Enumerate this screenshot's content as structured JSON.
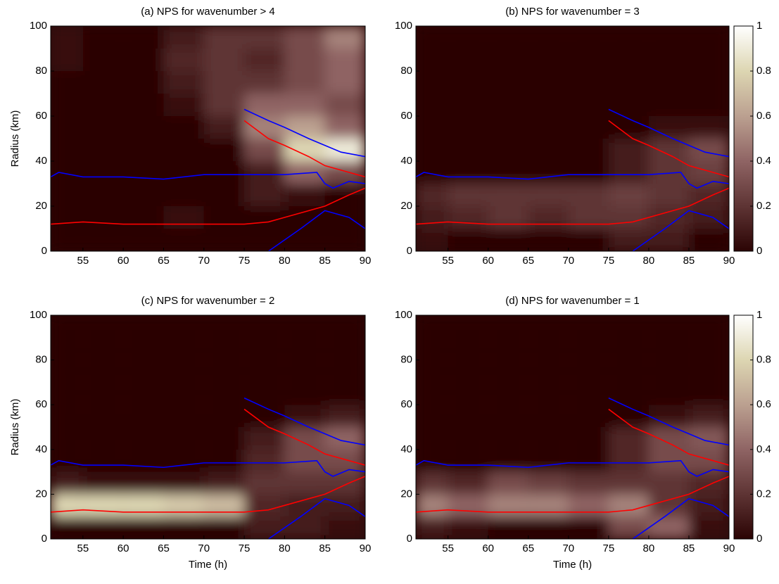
{
  "chart_data": [
    {
      "type": "heatmap",
      "title": "(a) NPS for wavenumber > 4",
      "ylabel": "Radius (km)",
      "xlim": [
        51,
        90
      ],
      "ylim": [
        0,
        100
      ],
      "xticks": [
        55,
        60,
        65,
        70,
        75,
        80,
        85,
        90
      ],
      "yticks": [
        0,
        20,
        40,
        60,
        80,
        100
      ],
      "xbins": [
        51,
        55,
        60,
        65,
        70,
        75,
        80,
        85,
        90
      ],
      "ybins": [
        0,
        10,
        20,
        30,
        40,
        50,
        60,
        70,
        80,
        90,
        100
      ],
      "clim": [
        0,
        1
      ],
      "colormap": [
        "#2b0404",
        "#5e3434",
        "#8f6464",
        "#bba090",
        "#ddd6b2",
        "#ffffff"
      ],
      "colorbar": false,
      "z": [
        [
          0,
          0,
          0,
          0,
          0,
          0,
          0,
          0
        ],
        [
          0,
          0,
          0,
          0.05,
          0,
          0,
          0,
          0
        ],
        [
          0,
          0,
          0,
          0,
          0,
          0.1,
          0.05,
          0
        ],
        [
          0,
          0,
          0,
          0,
          0,
          0.1,
          0.4,
          0.3
        ],
        [
          0,
          0,
          0,
          0,
          0,
          0.3,
          0.8,
          0.9
        ],
        [
          0,
          0,
          0,
          0,
          0.1,
          0.5,
          0.6,
          0.4
        ],
        [
          0,
          0,
          0,
          0.05,
          0.2,
          0.4,
          0.4,
          0.3
        ],
        [
          0,
          0,
          0,
          0.1,
          0.2,
          0.2,
          0.3,
          0.4
        ],
        [
          0.05,
          0,
          0,
          0.15,
          0.2,
          0.15,
          0.3,
          0.4
        ],
        [
          0.05,
          0,
          0,
          0.1,
          0.2,
          0.2,
          0.3,
          0.5
        ]
      ],
      "lines": [
        {
          "color": "#0000ff",
          "x": [
            51,
            52,
            55,
            60,
            65,
            70,
            75,
            80,
            84,
            85,
            86,
            88,
            90
          ],
          "y": [
            33,
            35,
            33,
            33,
            32,
            34,
            34,
            34,
            35,
            30,
            28,
            31,
            30
          ]
        },
        {
          "color": "#ff0000",
          "x": [
            51,
            55,
            60,
            70,
            75,
            78,
            80,
            85,
            88,
            90
          ],
          "y": [
            12,
            13,
            12,
            12,
            12,
            13,
            15,
            20,
            25,
            28
          ]
        },
        {
          "color": "#ff0000",
          "x": [
            75,
            78,
            80,
            83,
            85,
            88,
            90
          ],
          "y": [
            58,
            50,
            47,
            42,
            38,
            35,
            33
          ]
        },
        {
          "color": "#0000ff",
          "x": [
            75,
            78,
            80,
            83,
            85,
            87,
            90
          ],
          "y": [
            63,
            58,
            55,
            50,
            47,
            44,
            42
          ]
        },
        {
          "color": "#0000ff",
          "x": [
            78,
            82,
            85,
            88,
            90
          ],
          "y": [
            0,
            10,
            18,
            15,
            10
          ]
        }
      ]
    },
    {
      "type": "heatmap",
      "title": "(b) NPS for wavenumber = 3",
      "xlim": [
        51,
        90
      ],
      "ylim": [
        0,
        100
      ],
      "xticks": [
        55,
        60,
        65,
        70,
        75,
        80,
        85,
        90
      ],
      "yticks": [
        0,
        20,
        40,
        60,
        80,
        100
      ],
      "xbins": [
        51,
        55,
        60,
        65,
        70,
        75,
        80,
        85,
        90
      ],
      "ybins": [
        0,
        10,
        20,
        30,
        40,
        50,
        60,
        70,
        80,
        90,
        100
      ],
      "clim": [
        0,
        1
      ],
      "colormap": [
        "#2b0404",
        "#5e3434",
        "#8f6464",
        "#bba090",
        "#ddd6b2",
        "#ffffff"
      ],
      "colorbar": true,
      "cticks": [
        0,
        0.2,
        0.4,
        0.6,
        0.8,
        1
      ],
      "z": [
        [
          0.05,
          0,
          0,
          0,
          0,
          0.1,
          0.1,
          0
        ],
        [
          0.1,
          0.15,
          0.2,
          0.15,
          0.2,
          0.2,
          0.15,
          0.1
        ],
        [
          0.15,
          0.2,
          0.2,
          0.2,
          0.2,
          0.25,
          0.2,
          0.15
        ],
        [
          0,
          0,
          0,
          0,
          0,
          0.1,
          0.2,
          0.25
        ],
        [
          0,
          0,
          0,
          0,
          0,
          0.1,
          0.2,
          0.3
        ],
        [
          0,
          0,
          0,
          0,
          0,
          0,
          0.05,
          0.05
        ],
        [
          0,
          0,
          0,
          0,
          0,
          0,
          0,
          0
        ],
        [
          0,
          0,
          0,
          0,
          0,
          0,
          0,
          0
        ],
        [
          0,
          0,
          0,
          0,
          0,
          0,
          0,
          0
        ],
        [
          0,
          0,
          0,
          0,
          0,
          0,
          0,
          0
        ]
      ],
      "lines": [
        {
          "color": "#0000ff",
          "x": [
            51,
            52,
            55,
            60,
            65,
            70,
            75,
            80,
            84,
            85,
            86,
            88,
            90
          ],
          "y": [
            33,
            35,
            33,
            33,
            32,
            34,
            34,
            34,
            35,
            30,
            28,
            31,
            30
          ]
        },
        {
          "color": "#ff0000",
          "x": [
            51,
            55,
            60,
            70,
            75,
            78,
            80,
            85,
            88,
            90
          ],
          "y": [
            12,
            13,
            12,
            12,
            12,
            13,
            15,
            20,
            25,
            28
          ]
        },
        {
          "color": "#ff0000",
          "x": [
            75,
            78,
            80,
            83,
            85,
            88,
            90
          ],
          "y": [
            58,
            50,
            47,
            42,
            38,
            35,
            33
          ]
        },
        {
          "color": "#0000ff",
          "x": [
            75,
            78,
            80,
            83,
            85,
            87,
            90
          ],
          "y": [
            63,
            58,
            55,
            50,
            47,
            44,
            42
          ]
        },
        {
          "color": "#0000ff",
          "x": [
            78,
            82,
            85,
            88,
            90
          ],
          "y": [
            0,
            10,
            18,
            15,
            10
          ]
        }
      ]
    },
    {
      "type": "heatmap",
      "title": "(c) NPS for wavenumber = 2",
      "ylabel": "Radius (km)",
      "xlabel": "Time (h)",
      "xlim": [
        51,
        90
      ],
      "ylim": [
        0,
        100
      ],
      "xticks": [
        55,
        60,
        65,
        70,
        75,
        80,
        85,
        90
      ],
      "yticks": [
        0,
        20,
        40,
        60,
        80,
        100
      ],
      "xbins": [
        51,
        55,
        60,
        65,
        70,
        75,
        80,
        85,
        90
      ],
      "ybins": [
        0,
        10,
        20,
        30,
        40,
        50,
        60,
        70,
        80,
        90,
        100
      ],
      "clim": [
        0,
        1
      ],
      "colormap": [
        "#2b0404",
        "#5e3434",
        "#8f6464",
        "#bba090",
        "#ddd6b2",
        "#ffffff"
      ],
      "colorbar": false,
      "z": [
        [
          0,
          0,
          0,
          0,
          0,
          0.1,
          0.1,
          0.05
        ],
        [
          0.8,
          0.8,
          0.8,
          0.75,
          0.7,
          0.15,
          0.1,
          0.1
        ],
        [
          0.1,
          0.05,
          0.05,
          0.05,
          0.1,
          0.2,
          0.2,
          0.2
        ],
        [
          0,
          0,
          0,
          0,
          0,
          0.15,
          0.3,
          0.3
        ],
        [
          0,
          0,
          0,
          0,
          0,
          0.1,
          0.3,
          0.4
        ],
        [
          0,
          0,
          0,
          0,
          0,
          0,
          0.05,
          0.1
        ],
        [
          0,
          0,
          0,
          0,
          0,
          0,
          0,
          0
        ],
        [
          0,
          0,
          0,
          0,
          0,
          0,
          0,
          0
        ],
        [
          0,
          0,
          0,
          0,
          0,
          0,
          0,
          0
        ],
        [
          0,
          0,
          0,
          0,
          0,
          0,
          0,
          0
        ]
      ],
      "lines": [
        {
          "color": "#0000ff",
          "x": [
            51,
            52,
            55,
            60,
            65,
            70,
            75,
            80,
            84,
            85,
            86,
            88,
            90
          ],
          "y": [
            33,
            35,
            33,
            33,
            32,
            34,
            34,
            34,
            35,
            30,
            28,
            31,
            30
          ]
        },
        {
          "color": "#ff0000",
          "x": [
            51,
            55,
            60,
            70,
            75,
            78,
            80,
            85,
            88,
            90
          ],
          "y": [
            12,
            13,
            12,
            12,
            12,
            13,
            15,
            20,
            25,
            28
          ]
        },
        {
          "color": "#ff0000",
          "x": [
            75,
            78,
            80,
            83,
            85,
            88,
            90
          ],
          "y": [
            58,
            50,
            47,
            42,
            38,
            35,
            33
          ]
        },
        {
          "color": "#0000ff",
          "x": [
            75,
            78,
            80,
            83,
            85,
            87,
            90
          ],
          "y": [
            63,
            58,
            55,
            50,
            47,
            44,
            42
          ]
        },
        {
          "color": "#0000ff",
          "x": [
            78,
            82,
            85,
            88,
            90
          ],
          "y": [
            0,
            10,
            18,
            15,
            10
          ]
        }
      ]
    },
    {
      "type": "heatmap",
      "title": "(d) NPS for wavenumber = 1",
      "xlabel": "Time (h)",
      "xlim": [
        51,
        90
      ],
      "ylim": [
        0,
        100
      ],
      "xticks": [
        55,
        60,
        65,
        70,
        75,
        80,
        85,
        90
      ],
      "yticks": [
        0,
        20,
        40,
        60,
        80,
        100
      ],
      "xbins": [
        51,
        55,
        60,
        65,
        70,
        75,
        80,
        85,
        90
      ],
      "ybins": [
        0,
        10,
        20,
        30,
        40,
        50,
        60,
        70,
        80,
        90,
        100
      ],
      "clim": [
        0,
        1
      ],
      "colormap": [
        "#2b0404",
        "#5e3434",
        "#8f6464",
        "#bba090",
        "#ddd6b2",
        "#ffffff"
      ],
      "colorbar": true,
      "cticks": [
        0,
        0.2,
        0.4,
        0.6,
        0.8,
        1
      ],
      "z": [
        [
          0.1,
          0.05,
          0,
          0,
          0,
          0.3,
          0.4,
          0.05
        ],
        [
          0.5,
          0.4,
          0.5,
          0.5,
          0.4,
          0.5,
          0.2,
          0.1
        ],
        [
          0.2,
          0.15,
          0.3,
          0.25,
          0.2,
          0.2,
          0.2,
          0.15
        ],
        [
          0,
          0,
          0,
          0,
          0,
          0.15,
          0.3,
          0.3
        ],
        [
          0,
          0,
          0,
          0,
          0,
          0.15,
          0.3,
          0.35
        ],
        [
          0,
          0,
          0,
          0,
          0,
          0,
          0.05,
          0.1
        ],
        [
          0,
          0,
          0,
          0,
          0,
          0,
          0,
          0
        ],
        [
          0,
          0,
          0,
          0,
          0,
          0,
          0,
          0
        ],
        [
          0,
          0,
          0,
          0,
          0,
          0,
          0,
          0
        ],
        [
          0,
          0,
          0,
          0,
          0,
          0,
          0,
          0
        ]
      ],
      "lines": [
        {
          "color": "#0000ff",
          "x": [
            51,
            52,
            55,
            60,
            65,
            70,
            75,
            80,
            84,
            85,
            86,
            88,
            90
          ],
          "y": [
            33,
            35,
            33,
            33,
            32,
            34,
            34,
            34,
            35,
            30,
            28,
            31,
            30
          ]
        },
        {
          "color": "#ff0000",
          "x": [
            51,
            55,
            60,
            70,
            75,
            78,
            80,
            85,
            88,
            90
          ],
          "y": [
            12,
            13,
            12,
            12,
            12,
            13,
            15,
            20,
            25,
            28
          ]
        },
        {
          "color": "#ff0000",
          "x": [
            75,
            78,
            80,
            83,
            85,
            88,
            90
          ],
          "y": [
            58,
            50,
            47,
            42,
            38,
            35,
            33
          ]
        },
        {
          "color": "#0000ff",
          "x": [
            75,
            78,
            80,
            83,
            85,
            87,
            90
          ],
          "y": [
            63,
            58,
            55,
            50,
            47,
            44,
            42
          ]
        },
        {
          "color": "#0000ff",
          "x": [
            78,
            82,
            85,
            88,
            90
          ],
          "y": [
            0,
            10,
            18,
            15,
            10
          ]
        }
      ]
    }
  ]
}
